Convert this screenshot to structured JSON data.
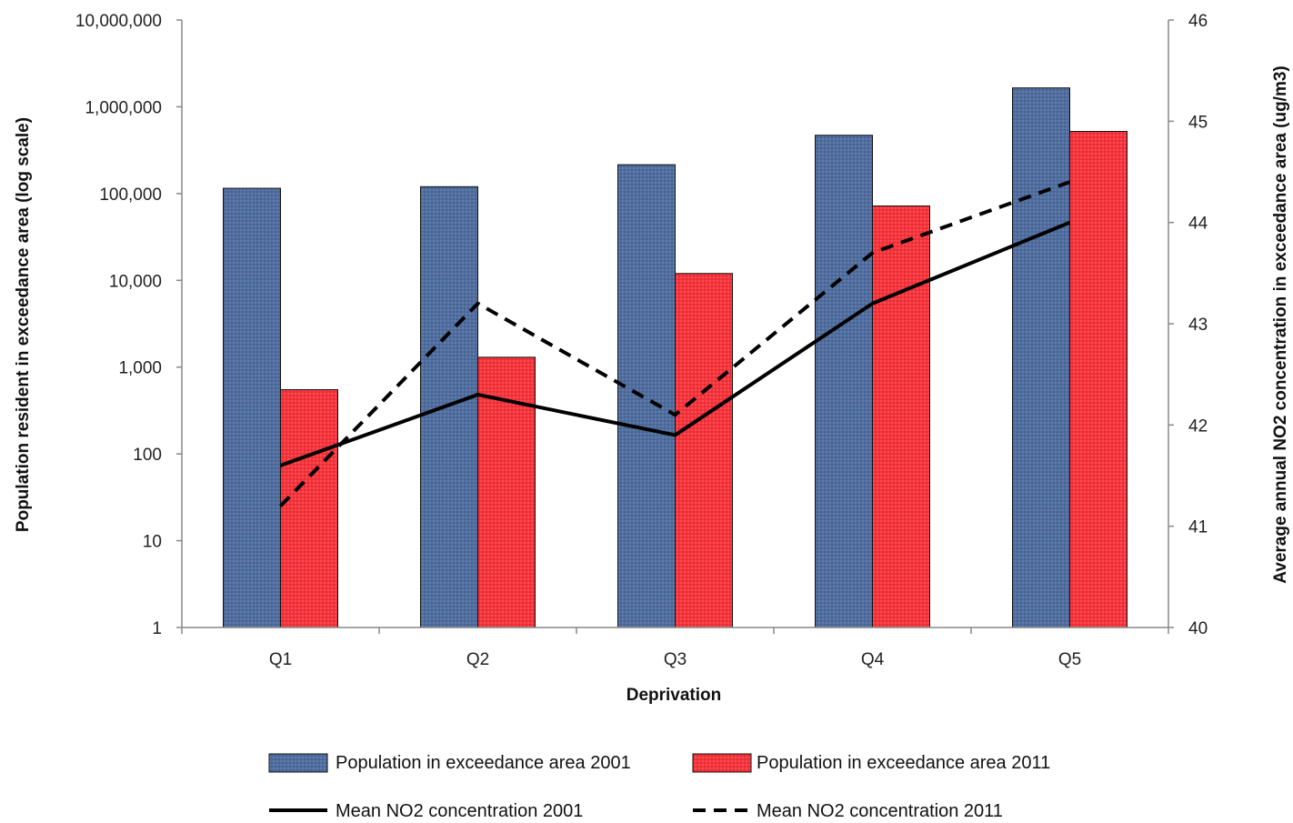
{
  "chart_data": {
    "type": "bar",
    "categories": [
      "Q1",
      "Q2",
      "Q3",
      "Q4",
      "Q5"
    ],
    "xlabel": "Deprivation",
    "ylabel": "Population  resident in exceedance area (log scale)",
    "y2label": "Average annual NO2 concentration in exceedance area (ug/m3)",
    "y_scale": "log",
    "ylim": [
      1,
      10000000
    ],
    "y_ticks": [
      1,
      10,
      100,
      1000,
      10000,
      100000,
      1000000,
      10000000
    ],
    "y_tick_labels": [
      "1",
      "10",
      "100",
      "1,000",
      "10,000",
      "100,000",
      "1,000,000",
      "10,000,000"
    ],
    "y2lim": [
      40,
      46
    ],
    "y2_ticks": [
      40,
      41,
      42,
      43,
      44,
      45,
      46
    ],
    "y2_tick_labels": [
      "40",
      "41",
      "42",
      "43",
      "44",
      "45",
      "46"
    ],
    "grid": false,
    "legend_position": "bottom",
    "bar_series": [
      {
        "name": "Population in exceedance area 2001",
        "color": "#4f6d9e",
        "values": [
          115000,
          120000,
          215000,
          470000,
          1650000
        ]
      },
      {
        "name": "Population in exceedance area 2011",
        "color": "#f5333b",
        "values": [
          550,
          1300,
          12000,
          72000,
          520000
        ]
      }
    ],
    "line_series": [
      {
        "name": "Mean NO2 concentration 2001",
        "color": "#000000",
        "style": "solid",
        "axis": "right",
        "values": [
          41.6,
          42.3,
          41.9,
          43.2,
          44.0
        ]
      },
      {
        "name": "Mean NO2 concentration 2011",
        "color": "#000000",
        "style": "dashed",
        "axis": "right",
        "values": [
          41.2,
          43.2,
          42.1,
          43.7,
          44.4
        ]
      }
    ]
  }
}
